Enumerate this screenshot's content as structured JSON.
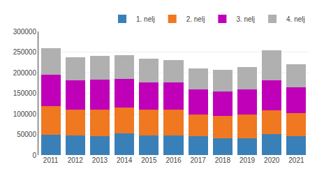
{
  "chart_data": {
    "type": "bar",
    "stacked": true,
    "categories": [
      "2011",
      "2012",
      "2013",
      "2014",
      "2015",
      "2016",
      "2017",
      "2018",
      "2019",
      "2020",
      "2021"
    ],
    "series": [
      {
        "name": "1. nelj",
        "color": "#3a80b8",
        "values": [
          50000,
          47000,
          46000,
          53000,
          48000,
          48000,
          45000,
          40000,
          40000,
          51000,
          46000
        ]
      },
      {
        "name": "2. nelj",
        "color": "#f07820",
        "values": [
          68000,
          63000,
          64000,
          62000,
          62000,
          62000,
          53000,
          55000,
          58000,
          58000,
          56000
        ]
      },
      {
        "name": "3. nelj",
        "color": "#c000b8",
        "values": [
          77000,
          72000,
          73000,
          70000,
          67000,
          67000,
          62000,
          60000,
          62000,
          73000,
          62000
        ]
      },
      {
        "name": "4. nelj",
        "color": "#b0b0b0",
        "values": [
          64000,
          55000,
          57000,
          57000,
          57000,
          54000,
          51000,
          52000,
          54000,
          73000,
          57000
        ]
      }
    ],
    "ylim": [
      0,
      300000
    ],
    "yticks": [
      0,
      50000,
      100000,
      150000,
      200000,
      250000,
      300000
    ],
    "grid": true,
    "legend": "upper right"
  }
}
